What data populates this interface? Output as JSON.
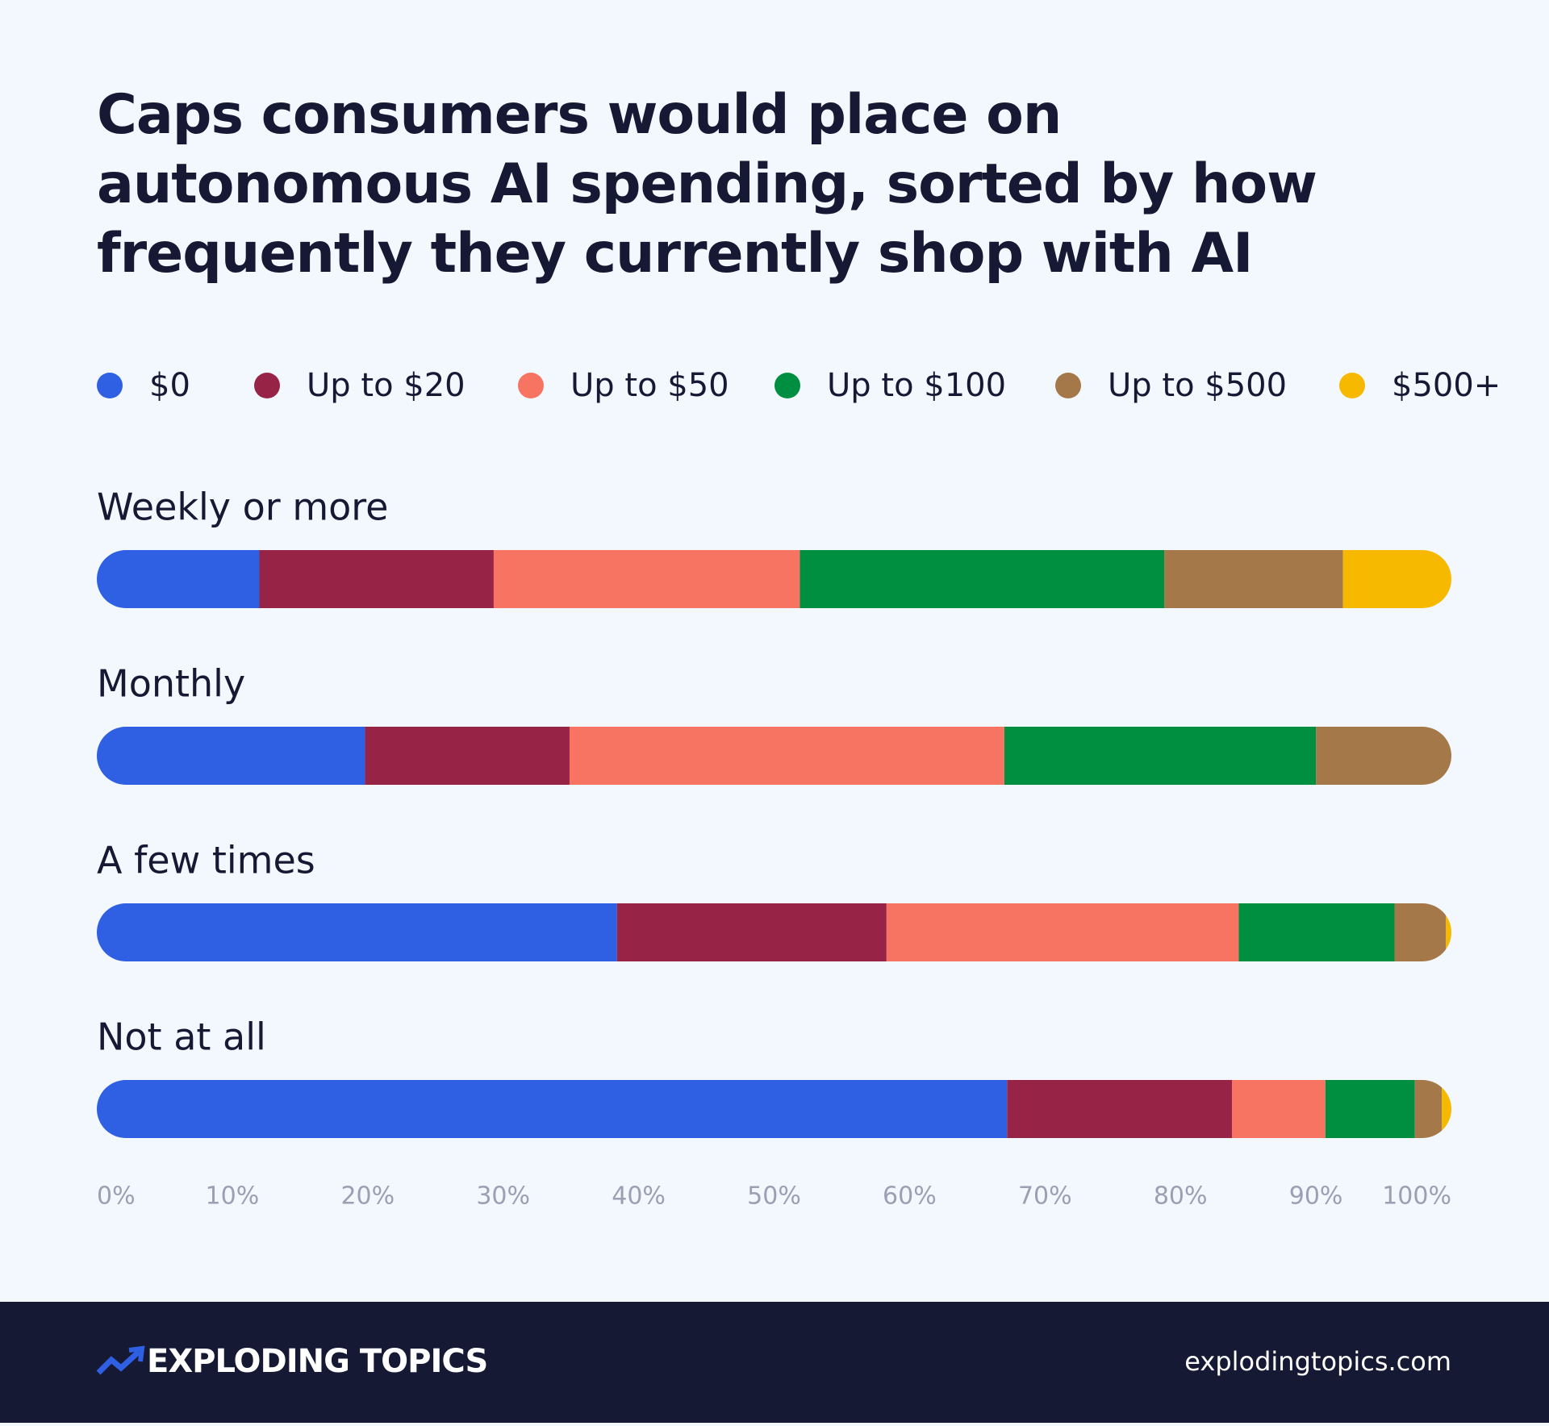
{
  "chart_data": {
    "type": "stacked-bar-horizontal",
    "title": "Caps consumers would place on autonomous AI spending, sorted by how frequently they currently shop with AI",
    "categories": [
      "Weekly or more",
      "Monthly",
      "A few times",
      "Not at all"
    ],
    "series": [
      {
        "name": "$0",
        "color": "#2f5fe3",
        "values": [
          12.0,
          19.8,
          38.4,
          67.2
        ]
      },
      {
        "name": "Up to $20",
        "color": "#972447",
        "values": [
          17.3,
          15.1,
          19.9,
          16.6
        ]
      },
      {
        "name": "Up to $50",
        "color": "#f87462",
        "values": [
          22.6,
          32.1,
          26.0,
          6.9
        ]
      },
      {
        "name": "Up to $100",
        "color": "#008f41",
        "values": [
          26.9,
          23.0,
          11.5,
          6.6
        ]
      },
      {
        "name": "Up to $500",
        "color": "#a47849",
        "values": [
          13.2,
          10.1,
          3.8,
          2.0
        ]
      },
      {
        "name": "$500+",
        "color": "#f7b900",
        "values": [
          8.0,
          0,
          0.5,
          0.7
        ]
      }
    ],
    "xlim": [
      0,
      100
    ],
    "xticks": [
      {
        "value": 0,
        "label": "0%"
      },
      {
        "value": 10,
        "label": "10%"
      },
      {
        "value": 20,
        "label": "20%"
      },
      {
        "value": 30,
        "label": "30%"
      },
      {
        "value": 40,
        "label": "40%"
      },
      {
        "value": 50,
        "label": "50%"
      },
      {
        "value": 60,
        "label": "60%"
      },
      {
        "value": 70,
        "label": "70%"
      },
      {
        "value": 80,
        "label": "80%"
      },
      {
        "value": 90,
        "label": "90%"
      },
      {
        "value": 100,
        "label": "100%"
      }
    ],
    "legend": "top"
  },
  "footer": {
    "brand": "EXPLODING TOPICS",
    "url": "explodingtopics.com"
  }
}
